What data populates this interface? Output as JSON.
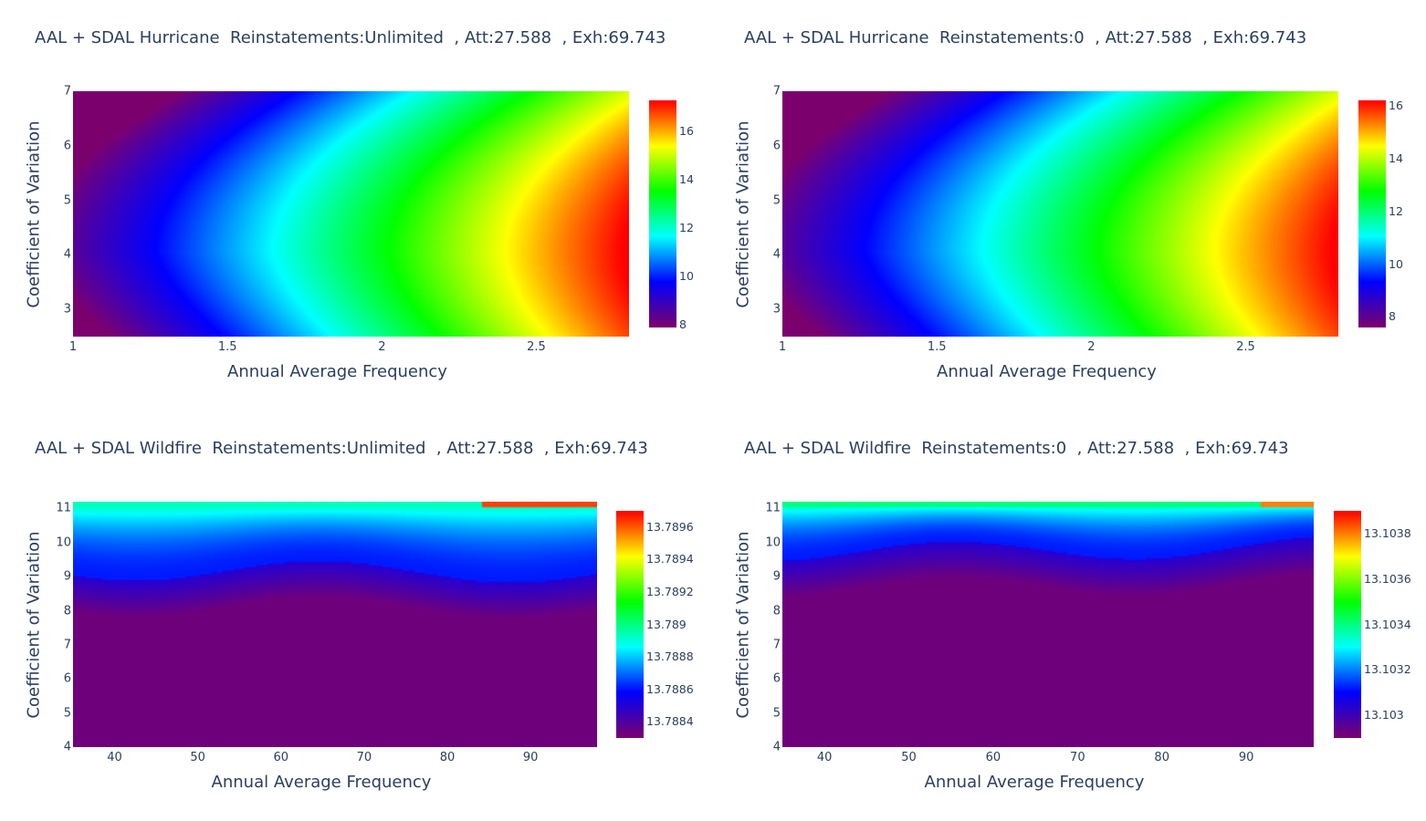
{
  "colorscale": [
    "#7b006e",
    "#0000ff",
    "#00ffff",
    "#00ff00",
    "#ffff00",
    "#ff0000"
  ],
  "chart_data": [
    {
      "type": "heatmap",
      "title": "AAL + SDAL Hurricane  Reinstatements:Unlimited  , Att:27.588  , Exh:69.743",
      "xlabel": "Annual Average Frequency",
      "ylabel": "Coefficient of Variation",
      "xlim": [
        1,
        2.8
      ],
      "ylim": [
        2.5,
        7
      ],
      "xticks": [
        "1",
        "1.5",
        "2",
        "2.5"
      ],
      "yticks": [
        "3",
        "4",
        "5",
        "6",
        "7"
      ],
      "zlim": [
        7.9,
        17.3
      ],
      "colorbar_ticks": [
        "8",
        "10",
        "12",
        "14",
        "16"
      ],
      "surface": "hurricane"
    },
    {
      "type": "heatmap",
      "title": "AAL + SDAL Hurricane  Reinstatements:0  , Att:27.588  , Exh:69.743",
      "xlabel": "Annual Average Frequency",
      "ylabel": "Coefficient of Variation",
      "xlim": [
        1,
        2.8
      ],
      "ylim": [
        2.5,
        7
      ],
      "xticks": [
        "1",
        "1.5",
        "2",
        "2.5"
      ],
      "yticks": [
        "3",
        "4",
        "5",
        "6",
        "7"
      ],
      "zlim": [
        7.6,
        16.2
      ],
      "colorbar_ticks": [
        "8",
        "10",
        "12",
        "14",
        "16"
      ],
      "surface": "hurricane"
    },
    {
      "type": "heatmap",
      "title": "AAL + SDAL Wildfire  Reinstatements:Unlimited  , Att:27.588  , Exh:69.743",
      "xlabel": "Annual Average Frequency",
      "ylabel": "Coefficient of Variation",
      "xlim": [
        35,
        98
      ],
      "ylim": [
        4,
        11.2
      ],
      "xticks": [
        "40",
        "50",
        "60",
        "70",
        "80",
        "90"
      ],
      "yticks": [
        "4",
        "5",
        "6",
        "7",
        "8",
        "9",
        "10",
        "11"
      ],
      "zlim": [
        13.7883,
        13.7897
      ],
      "colorbar_ticks": [
        "13.7884",
        "13.7886",
        "13.7888",
        "13.789",
        "13.7892",
        "13.7894",
        "13.7896"
      ],
      "surface": "wildfire"
    },
    {
      "type": "heatmap",
      "title": "AAL + SDAL Wildfire  Reinstatements:0  , Att:27.588  , Exh:69.743",
      "xlabel": "Annual Average Frequency",
      "ylabel": "Coefficient of Variation",
      "xlim": [
        35,
        98
      ],
      "ylim": [
        4,
        11.2
      ],
      "xticks": [
        "40",
        "50",
        "60",
        "70",
        "80",
        "90"
      ],
      "yticks": [
        "4",
        "5",
        "6",
        "7",
        "8",
        "9",
        "10",
        "11"
      ],
      "zlim": [
        13.1029,
        13.1039
      ],
      "colorbar_ticks": [
        "13.103",
        "13.1032",
        "13.1034",
        "13.1036",
        "13.1038"
      ],
      "surface": "wildfire"
    }
  ]
}
